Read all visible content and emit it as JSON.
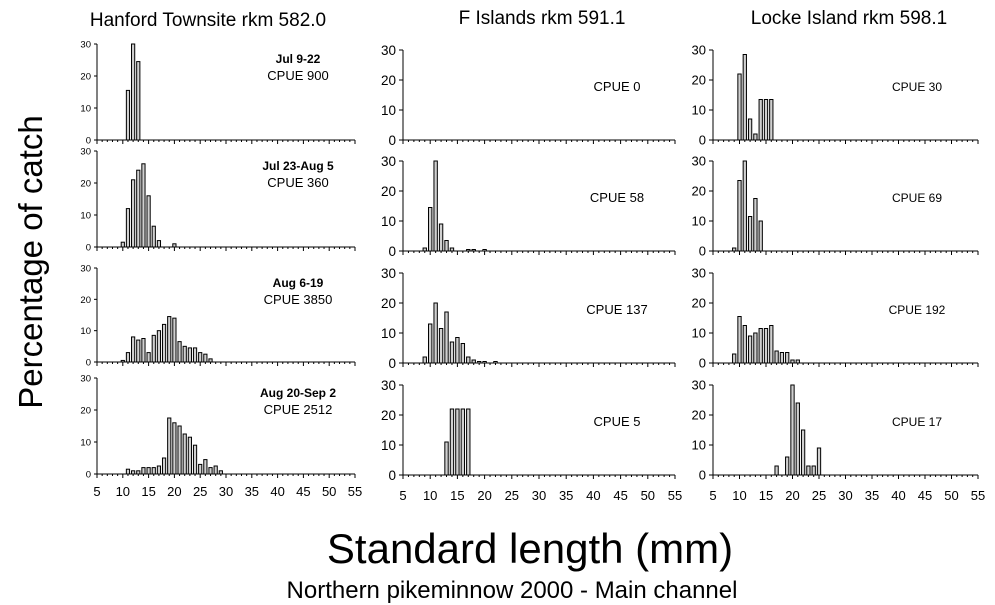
{
  "figure": {
    "ylabel": "Percentage of catch",
    "xlabel": "Standard length (mm)",
    "caption": "Northern pikeminnow  2000 - Main channel"
  },
  "columns": [
    {
      "title": "Hanford Townsite rkm 582.0"
    },
    {
      "title": "F Islands rkm 591.1"
    },
    {
      "title": "Locke Island  rkm 598.1"
    }
  ],
  "row_labels": [
    "Jul 9-22",
    "Jul 23-Aug 5",
    "Aug 6-19",
    "Aug 20-Sep 2"
  ],
  "style": {
    "bar_fill": "#d0d0d0",
    "bar_stroke": "#000000",
    "axis_color": "#000000"
  },
  "chart_data": [
    {
      "type": "bar",
      "column": 0,
      "row": 0,
      "period": "Jul 9-22",
      "annotation": "CPUE 900",
      "x": [
        11,
        12,
        13
      ],
      "values": [
        15.5,
        30,
        24.5
      ],
      "ylim": [
        0,
        30
      ],
      "xlim": [
        5,
        55
      ],
      "yticks": [
        0,
        10,
        20,
        30
      ]
    },
    {
      "type": "bar",
      "column": 0,
      "row": 1,
      "period": "Jul 23-Aug 5",
      "annotation": "CPUE 360",
      "x": [
        10,
        11,
        12,
        13,
        14,
        15,
        16,
        17,
        20
      ],
      "values": [
        1.5,
        12,
        21,
        24,
        26,
        16,
        6.5,
        2,
        1
      ],
      "ylim": [
        0,
        30
      ],
      "xlim": [
        5,
        55
      ],
      "yticks": [
        0,
        10,
        20,
        30
      ]
    },
    {
      "type": "bar",
      "column": 0,
      "row": 2,
      "period": "Aug 6-19",
      "annotation": "CPUE 3850",
      "x": [
        10,
        11,
        12,
        13,
        14,
        15,
        16,
        17,
        18,
        19,
        20,
        21,
        22,
        23,
        24,
        25,
        26,
        27
      ],
      "values": [
        0.5,
        3,
        8,
        7,
        7.5,
        3,
        8.5,
        10,
        12,
        14.5,
        14,
        6.5,
        5,
        4.5,
        4.5,
        3,
        2.5,
        1
      ],
      "ylim": [
        0,
        30
      ],
      "xlim": [
        5,
        55
      ],
      "yticks": [
        0,
        10,
        20,
        30
      ]
    },
    {
      "type": "bar",
      "column": 0,
      "row": 3,
      "period": "Aug 20-Sep 2",
      "annotation": "CPUE 2512",
      "x": [
        11,
        12,
        13,
        14,
        15,
        16,
        17,
        18,
        19,
        20,
        21,
        22,
        23,
        24,
        25,
        26,
        27,
        28,
        29
      ],
      "values": [
        1.5,
        1,
        1,
        2,
        2,
        2,
        2.5,
        5,
        17.5,
        16,
        15,
        12.5,
        11.5,
        9,
        3,
        4.5,
        2,
        2.5,
        1
      ],
      "ylim": [
        0,
        30
      ],
      "xlim": [
        5,
        55
      ],
      "yticks": [
        0,
        10,
        20,
        30
      ]
    },
    {
      "type": "bar",
      "column": 1,
      "row": 0,
      "period": "Jul 9-22",
      "annotation": "CPUE 0",
      "x": [],
      "values": [],
      "ylim": [
        0,
        30
      ],
      "xlim": [
        5,
        55
      ],
      "yticks": [
        0,
        10,
        20,
        30
      ]
    },
    {
      "type": "bar",
      "column": 1,
      "row": 1,
      "period": "Jul 23-Aug 5",
      "annotation": "CPUE 58",
      "x": [
        9,
        10,
        11,
        12,
        13,
        14,
        17,
        18,
        20
      ],
      "values": [
        1,
        14.5,
        30,
        9,
        3.5,
        1,
        0.5,
        0.5,
        0.5
      ],
      "ylim": [
        0,
        30
      ],
      "xlim": [
        5,
        55
      ],
      "yticks": [
        0,
        10,
        20,
        30
      ]
    },
    {
      "type": "bar",
      "column": 1,
      "row": 2,
      "period": "Aug 6-19",
      "annotation": "CPUE 137",
      "x": [
        9,
        10,
        11,
        12,
        13,
        14,
        15,
        16,
        17,
        18,
        19,
        20,
        22
      ],
      "values": [
        2,
        13,
        20,
        11.5,
        17,
        7,
        8.5,
        6.5,
        2,
        1,
        0.5,
        0.5,
        0.5
      ],
      "ylim": [
        0,
        30
      ],
      "xlim": [
        5,
        55
      ],
      "yticks": [
        0,
        10,
        20,
        30
      ]
    },
    {
      "type": "bar",
      "column": 1,
      "row": 3,
      "period": "Aug 20-Sep 2",
      "annotation": "CPUE 5",
      "x": [
        13,
        14,
        15,
        16,
        17
      ],
      "values": [
        11,
        22,
        22,
        22,
        22
      ],
      "ylim": [
        0,
        30
      ],
      "xlim": [
        5,
        55
      ],
      "yticks": [
        0,
        10,
        20,
        30
      ]
    },
    {
      "type": "bar",
      "column": 2,
      "row": 0,
      "period": "Jul 9-22",
      "annotation": "CPUE 30",
      "x": [
        10,
        11,
        12,
        13,
        14,
        15,
        16
      ],
      "values": [
        22,
        28.5,
        7,
        2,
        13.5,
        13.5,
        13.5
      ],
      "ylim": [
        0,
        30
      ],
      "xlim": [
        5,
        55
      ],
      "yticks": [
        0,
        10,
        20,
        30
      ]
    },
    {
      "type": "bar",
      "column": 2,
      "row": 1,
      "period": "Jul 23-Aug 5",
      "annotation": "CPUE 69",
      "x": [
        9,
        10,
        11,
        12,
        13,
        14
      ],
      "values": [
        1,
        23.5,
        30,
        11.5,
        17.5,
        10
      ],
      "ylim": [
        0,
        30
      ],
      "xlim": [
        5,
        55
      ],
      "yticks": [
        0,
        10,
        20,
        30
      ]
    },
    {
      "type": "bar",
      "column": 2,
      "row": 2,
      "period": "Aug 6-19",
      "annotation": "CPUE 192",
      "x": [
        9,
        10,
        11,
        12,
        13,
        14,
        15,
        16,
        17,
        18,
        19,
        20,
        21
      ],
      "values": [
        3,
        15.5,
        12.5,
        9,
        10,
        11.5,
        11.5,
        12.5,
        4,
        3.5,
        3.5,
        1,
        1
      ],
      "ylim": [
        0,
        30
      ],
      "xlim": [
        5,
        55
      ],
      "yticks": [
        0,
        10,
        20,
        30
      ]
    },
    {
      "type": "bar",
      "column": 2,
      "row": 3,
      "period": "Aug 20-Sep 2",
      "annotation": "CPUE 17",
      "x": [
        17,
        19,
        20,
        21,
        22,
        23,
        24,
        25
      ],
      "values": [
        3,
        6,
        30,
        24,
        15,
        3,
        3,
        9
      ],
      "ylim": [
        0,
        30
      ],
      "xlim": [
        5,
        55
      ],
      "yticks": [
        0,
        10,
        20,
        30
      ]
    }
  ],
  "xticks": [
    5,
    10,
    15,
    20,
    25,
    30,
    35,
    40,
    45,
    50,
    55
  ]
}
